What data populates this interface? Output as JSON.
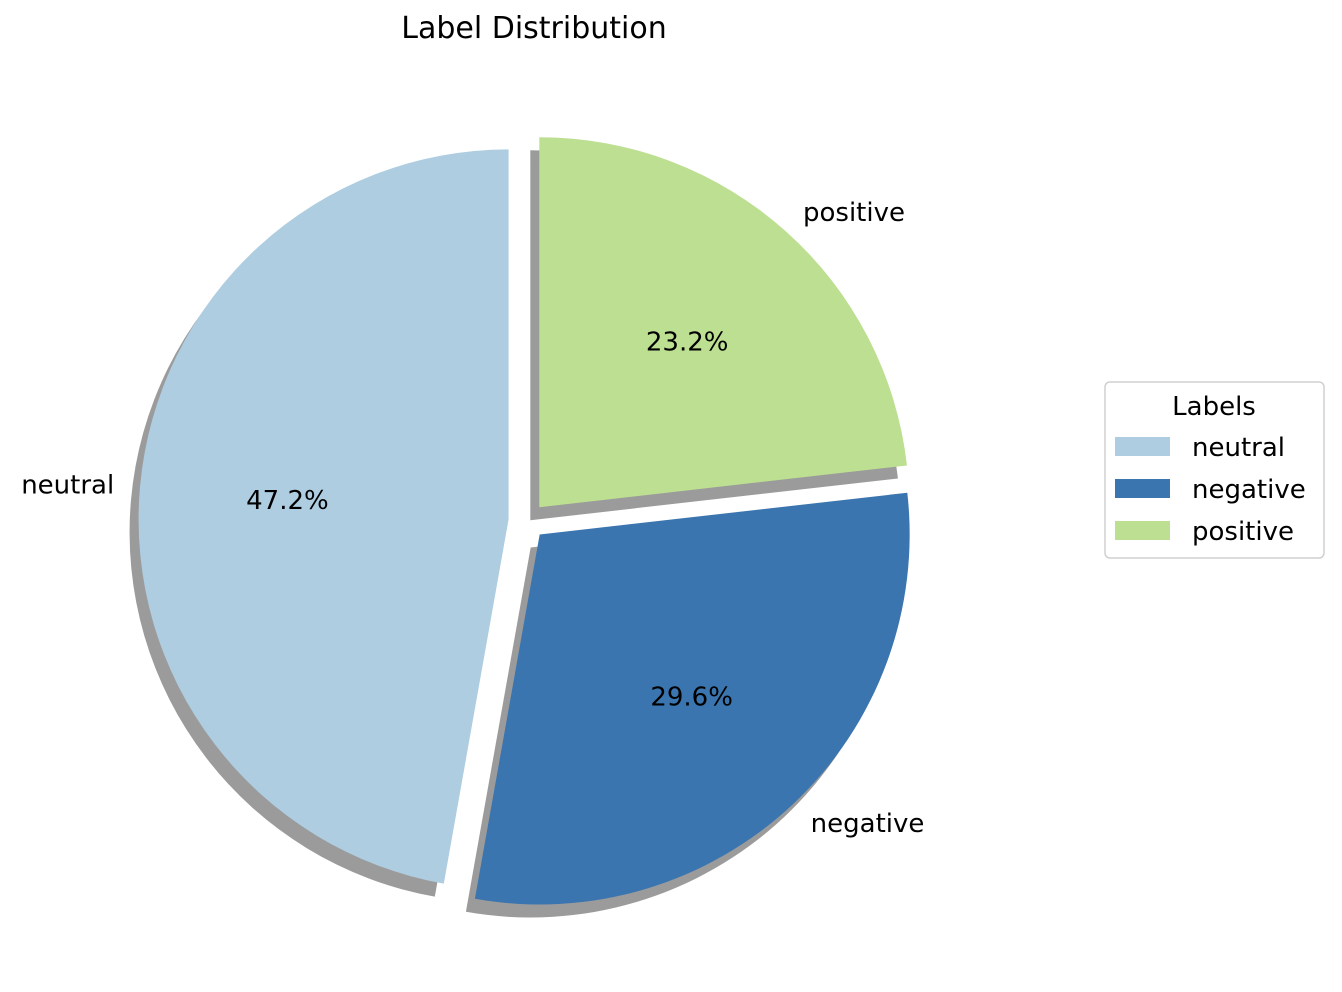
{
  "chart_data": {
    "type": "pie",
    "title": "Label Distribution",
    "categories": [
      "neutral",
      "negative",
      "positive"
    ],
    "values": [
      47.2,
      29.6,
      23.2
    ],
    "percent_labels": [
      "47.2%",
      "29.6%",
      "23.2%"
    ],
    "colors": [
      "#aecde1",
      "#3b75af",
      "#bddf92"
    ],
    "explode": [
      0.05,
      0.05,
      0.05
    ],
    "start_angle_deg": 90,
    "direction": "counterclockwise",
    "shadow": true,
    "legend": {
      "title": "Labels",
      "placement": "center-right",
      "entries": [
        "neutral",
        "negative",
        "positive"
      ]
    }
  }
}
